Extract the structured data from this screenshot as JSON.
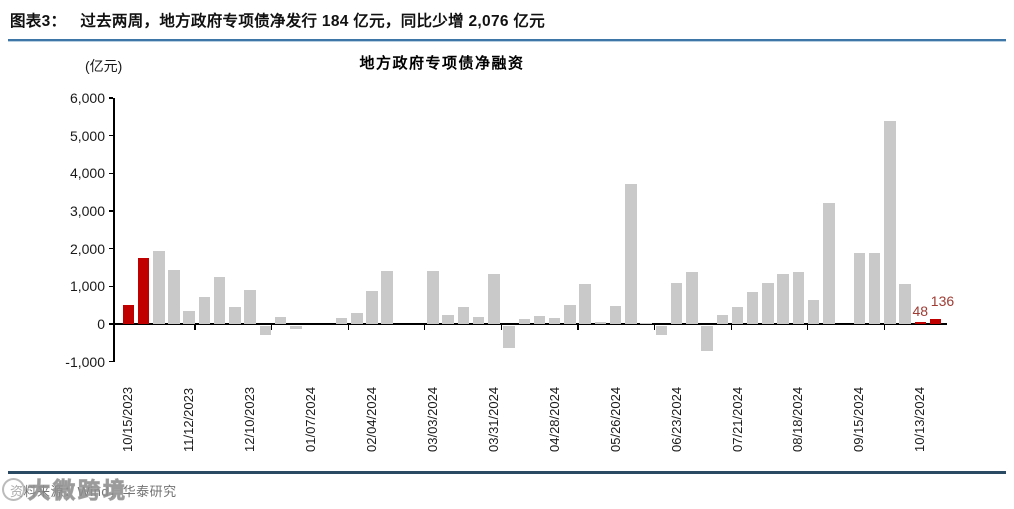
{
  "header": {
    "figure_label": "图表3：",
    "title": "过去两周，地方政府专项债净发行 184 亿元，同比少增 2,076 亿元"
  },
  "chart_data": {
    "type": "bar",
    "title": "地方政府专项债净融资",
    "unit_label": "(亿元)",
    "ylim": [
      -1000,
      6000
    ],
    "ytick_interval": 1000,
    "ytick_labels": [
      "6,000",
      "5,000",
      "4,000",
      "3,000",
      "2,000",
      "1,000",
      "0",
      "-1,000"
    ],
    "xtick_labels": [
      "10/15/2023",
      "11/12/2023",
      "12/10/2023",
      "01/07/2024",
      "02/04/2024",
      "03/03/2024",
      "03/31/2024",
      "04/28/2024",
      "05/26/2024",
      "06/23/2024",
      "07/21/2024",
      "08/18/2024",
      "09/15/2024",
      "10/13/2024"
    ],
    "grid": false,
    "legend": "none",
    "x": [
      "10/15/2023",
      "10/22/2023",
      "10/29/2023",
      "11/05/2023",
      "11/12/2023",
      "11/19/2023",
      "11/26/2023",
      "12/03/2023",
      "12/10/2023",
      "12/17/2023",
      "12/24/2023",
      "12/31/2023",
      "01/07/2024",
      "01/14/2024",
      "01/21/2024",
      "01/28/2024",
      "02/04/2024",
      "02/11/2024",
      "02/18/2024",
      "02/25/2024",
      "03/03/2024",
      "03/10/2024",
      "03/17/2024",
      "03/24/2024",
      "03/31/2024",
      "04/07/2024",
      "04/14/2024",
      "04/21/2024",
      "04/28/2024",
      "05/05/2024",
      "05/12/2024",
      "05/19/2024",
      "05/26/2024",
      "06/02/2024",
      "06/09/2024",
      "06/16/2024",
      "06/23/2024",
      "06/30/2024",
      "07/07/2024",
      "07/14/2024",
      "07/21/2024",
      "07/28/2024",
      "08/04/2024",
      "08/11/2024",
      "08/18/2024",
      "08/25/2024",
      "09/01/2024",
      "09/08/2024",
      "09/15/2024",
      "09/22/2024",
      "09/29/2024",
      "10/06/2024",
      "10/13/2024",
      "10/20/2024"
    ],
    "values": [
      500,
      1760,
      1950,
      1440,
      340,
      730,
      1240,
      440,
      890,
      -250,
      180,
      -100,
      0,
      0,
      150,
      300,
      870,
      1400,
      0,
      0,
      1400,
      250,
      450,
      190,
      1340,
      -600,
      120,
      220,
      150,
      510,
      1060,
      40,
      470,
      3720,
      30,
      -260,
      1090,
      1370,
      -660,
      230,
      460,
      840,
      1100,
      1330,
      1380,
      650,
      3200,
      0,
      1890,
      1890,
      5400,
      1070,
      48,
      136
    ],
    "highlight_indices": [
      0,
      1,
      52,
      53
    ],
    "colors": {
      "default_bar": "#C9C9C9",
      "highlight_bar": "#C00000",
      "annotation_text": "#9E3B33"
    },
    "annotations": [
      {
        "index": 52,
        "text": "48"
      },
      {
        "index": 53,
        "text": "136"
      }
    ]
  },
  "footer": {
    "source": "资料来源：Wind，华泰研究",
    "watermark": "大微跨境"
  }
}
